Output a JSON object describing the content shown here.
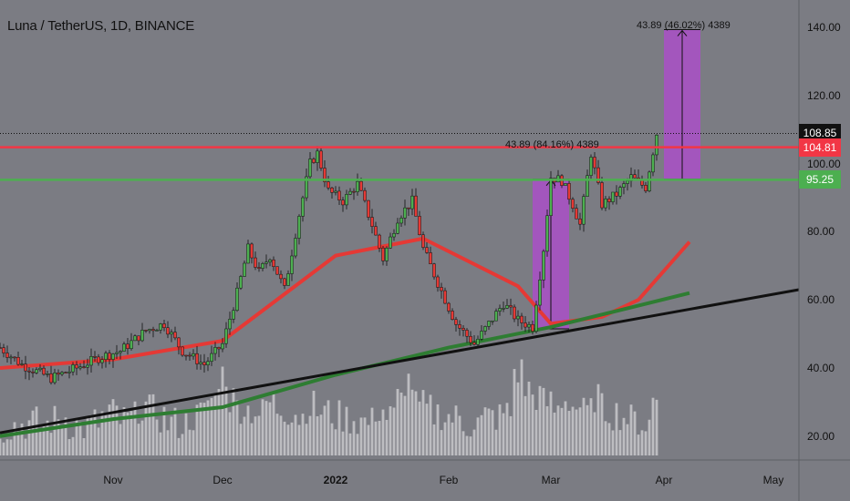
{
  "chart_data": {
    "type": "candlestick",
    "title": "Luna / TetherUS, 1D, BINANCE",
    "x_range": [
      "2021-10-01",
      "2022-05-08"
    ],
    "x_tick_labels": [
      {
        "label": "Nov",
        "date": "2021-11-01",
        "bold": false
      },
      {
        "label": "Dec",
        "date": "2021-12-01",
        "bold": false
      },
      {
        "label": "2022",
        "date": "2022-01-01",
        "bold": true
      },
      {
        "label": "Feb",
        "date": "2022-02-01",
        "bold": false
      },
      {
        "label": "Mar",
        "date": "2022-03-01",
        "bold": false
      },
      {
        "label": "Apr",
        "date": "2022-04-01",
        "bold": false
      },
      {
        "label": "May",
        "date": "2022-05-01",
        "bold": false
      }
    ],
    "y_ticks": [
      "20.00",
      "40.00",
      "60.00",
      "80.00",
      "100.00",
      "120.00",
      "140.00"
    ],
    "ylim": [
      13,
      148
    ],
    "grid": false,
    "price_path": [
      [
        "2021-10-01",
        46
      ],
      [
        "2021-10-07",
        41
      ],
      [
        "2021-10-15",
        37
      ],
      [
        "2021-10-22",
        40
      ],
      [
        "2021-10-28",
        43
      ],
      [
        "2021-11-03",
        45
      ],
      [
        "2021-11-10",
        51
      ],
      [
        "2021-11-15",
        53
      ],
      [
        "2021-11-20",
        45
      ],
      [
        "2021-11-26",
        41
      ],
      [
        "2021-12-01",
        47
      ],
      [
        "2021-12-05",
        62
      ],
      [
        "2021-12-08",
        75
      ],
      [
        "2021-12-11",
        68
      ],
      [
        "2021-12-14",
        73
      ],
      [
        "2021-12-18",
        63
      ],
      [
        "2021-12-22",
        85
      ],
      [
        "2021-12-25",
        100
      ],
      [
        "2021-12-27",
        103
      ],
      [
        "2021-12-30",
        92
      ],
      [
        "2022-01-03",
        89
      ],
      [
        "2022-01-07",
        94
      ],
      [
        "2022-01-11",
        82
      ],
      [
        "2022-01-14",
        72
      ],
      [
        "2022-01-18",
        84
      ],
      [
        "2022-01-22",
        89
      ],
      [
        "2022-01-25",
        75
      ],
      [
        "2022-01-29",
        65
      ],
      [
        "2022-02-03",
        53
      ],
      [
        "2022-02-08",
        47
      ],
      [
        "2022-02-12",
        53
      ],
      [
        "2022-02-16",
        59
      ],
      [
        "2022-02-20",
        54
      ],
      [
        "2022-02-24",
        52
      ],
      [
        "2022-02-27",
        75
      ],
      [
        "2022-03-01",
        96
      ],
      [
        "2022-03-04",
        95
      ],
      [
        "2022-03-07",
        88
      ],
      [
        "2022-03-09",
        82
      ],
      [
        "2022-03-12",
        103
      ],
      [
        "2022-03-15",
        88
      ],
      [
        "2022-03-19",
        91
      ],
      [
        "2022-03-23",
        96
      ],
      [
        "2022-03-27",
        93
      ],
      [
        "2022-03-30",
        108.85
      ]
    ],
    "horizontal_levels": [
      {
        "price": 108.85,
        "label": "108.85",
        "color": "#111111",
        "style": "dotted"
      },
      {
        "price": 104.81,
        "label": "104.81",
        "color": "#f23645",
        "style": "solid"
      },
      {
        "price": 95.25,
        "label": "95.25",
        "color": "#4caf50",
        "style": "solid"
      }
    ],
    "moving_averages": [
      {
        "color": "#e53935",
        "points": [
          [
            "2021-10-01",
            40
          ],
          [
            "2021-11-01",
            42.5
          ],
          [
            "2021-12-01",
            48
          ],
          [
            "2022-01-01",
            73
          ],
          [
            "2022-01-25",
            78
          ],
          [
            "2022-02-20",
            64
          ],
          [
            "2022-03-01",
            53
          ],
          [
            "2022-03-15",
            55
          ],
          [
            "2022-03-25",
            60
          ],
          [
            "2022-04-08",
            77
          ]
        ]
      },
      {
        "color": "#2e7d32",
        "points": [
          [
            "2021-10-01",
            20
          ],
          [
            "2021-11-01",
            25
          ],
          [
            "2021-12-01",
            28.5
          ],
          [
            "2022-01-01",
            38
          ],
          [
            "2022-02-01",
            46
          ],
          [
            "2022-03-01",
            52
          ],
          [
            "2022-03-20",
            57
          ],
          [
            "2022-04-08",
            62
          ]
        ]
      }
    ],
    "trendline": {
      "color": "#111111",
      "points": [
        [
          "2021-10-01",
          21
        ],
        [
          "2022-05-08",
          63
        ]
      ]
    },
    "measure_boxes": [
      {
        "x": [
          "2022-02-24",
          "2022-03-06"
        ],
        "y": [
          51.5,
          95.4
        ],
        "label": "43.89 (84.16%) 4389"
      },
      {
        "x": [
          "2022-04-01",
          "2022-04-11"
        ],
        "y": [
          95.4,
          139.3
        ],
        "label": "43.89 (46.02%) 4389"
      }
    ],
    "volume_bars": "relative height 0-1 per day",
    "volume_profile": [
      [
        0.15,
        0.18,
        0.2,
        0.22,
        0.18,
        0.25,
        0.3,
        0.2,
        0.15,
        0.22
      ],
      [
        0.3,
        0.35,
        0.25,
        0.28,
        0.45,
        0.38,
        0.3,
        0.22,
        0.2,
        0.3
      ],
      [
        0.35,
        0.55,
        0.9,
        0.55,
        0.45,
        0.4,
        0.35,
        0.5,
        0.42,
        0.38
      ],
      [
        0.3,
        0.45,
        0.38,
        0.35,
        0.3,
        0.28,
        0.25,
        0.22,
        0.4,
        0.3
      ],
      [
        0.55,
        0.8,
        0.45,
        0.4,
        0.35,
        0.3,
        0.28,
        0.2,
        0.22,
        0.3
      ],
      [
        0.3,
        0.35,
        0.95,
        0.7,
        0.6,
        0.5,
        0.4,
        0.55,
        0.45,
        0.35
      ],
      [
        0.6,
        0.4,
        0.35,
        0.3,
        0.25,
        0.2,
        0.55
      ]
    ]
  }
}
